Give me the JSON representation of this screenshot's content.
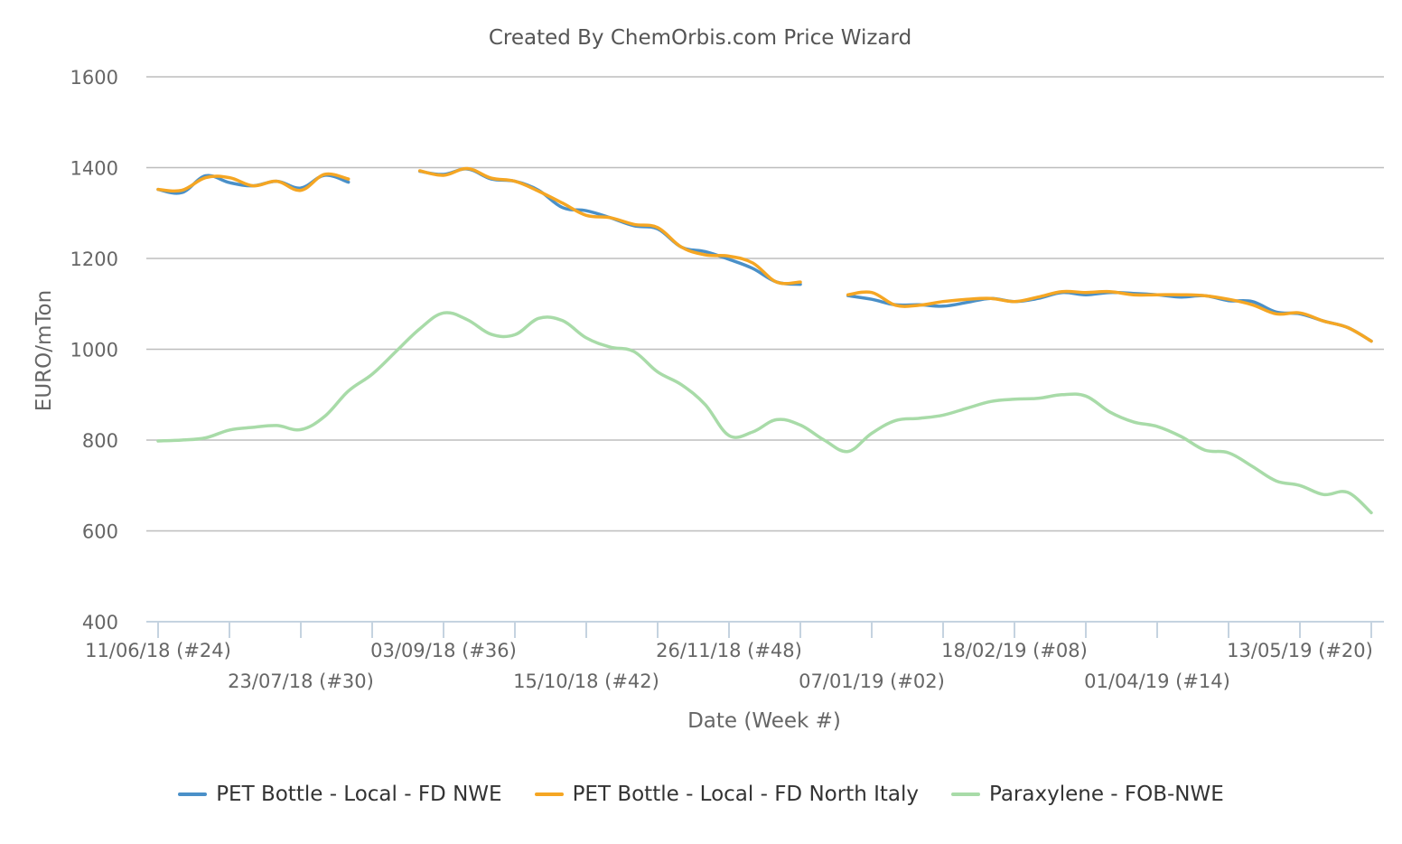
{
  "chart_data": {
    "type": "line",
    "title": "Created By ChemOrbis.com Price Wizard",
    "xlabel": "Date (Week #)",
    "ylabel": "EURO/mTon",
    "ylim": [
      400,
      1600
    ],
    "yticks": [
      400,
      600,
      800,
      1000,
      1200,
      1400,
      1600
    ],
    "grid": true,
    "legend_position": "bottom",
    "x_tick_labels": [
      {
        "label": "11/06/18 (#24)",
        "week": 0,
        "row": 0
      },
      {
        "label": "23/07/18 (#30)",
        "week": 6,
        "row": 1
      },
      {
        "label": "03/09/18 (#36)",
        "week": 12,
        "row": 0
      },
      {
        "label": "15/10/18 (#42)",
        "week": 18,
        "row": 1
      },
      {
        "label": "26/11/18 (#48)",
        "week": 24,
        "row": 0
      },
      {
        "label": "07/01/19 (#02)",
        "week": 30,
        "row": 1
      },
      {
        "label": "18/02/19 (#08)",
        "week": 36,
        "row": 0
      },
      {
        "label": "01/04/19 (#14)",
        "week": 42,
        "row": 1
      },
      {
        "label": "13/05/19 (#20)",
        "week": 48,
        "row": 0
      }
    ],
    "x_range": [
      0,
      51
    ],
    "series": [
      {
        "name": "PET Bottle - Local - FD NWE",
        "color": "#4a90c8",
        "points": [
          [
            0,
            1352
          ],
          [
            1,
            1345
          ],
          [
            2,
            1382
          ],
          [
            3,
            1367
          ],
          [
            4,
            1360
          ],
          [
            5,
            1370
          ],
          [
            6,
            1355
          ],
          [
            7,
            1383
          ],
          [
            8,
            1368
          ],
          null,
          [
            11,
            1392
          ],
          [
            12,
            1385
          ],
          [
            13,
            1397
          ],
          [
            14,
            1375
          ],
          [
            15,
            1370
          ],
          [
            16,
            1350
          ],
          [
            17,
            1312
          ],
          [
            18,
            1305
          ],
          [
            19,
            1290
          ],
          [
            20,
            1272
          ],
          [
            21,
            1265
          ],
          [
            22,
            1225
          ],
          [
            23,
            1215
          ],
          [
            24,
            1198
          ],
          [
            25,
            1178
          ],
          [
            26,
            1148
          ],
          [
            27,
            1143
          ],
          null,
          [
            29,
            1118
          ],
          [
            30,
            1110
          ],
          [
            31,
            1098
          ],
          [
            32,
            1098
          ],
          [
            33,
            1095
          ],
          [
            34,
            1103
          ],
          [
            35,
            1112
          ],
          [
            36,
            1105
          ],
          [
            37,
            1112
          ],
          [
            38,
            1125
          ],
          [
            39,
            1120
          ],
          [
            40,
            1125
          ],
          [
            41,
            1123
          ],
          [
            42,
            1120
          ],
          [
            43,
            1115
          ],
          [
            44,
            1118
          ],
          [
            45,
            1107
          ],
          [
            46,
            1105
          ],
          [
            47,
            1082
          ],
          [
            48,
            1078
          ],
          [
            49,
            1062
          ],
          [
            50,
            1048
          ],
          [
            51,
            1018
          ]
        ]
      },
      {
        "name": "PET Bottle - Local - FD North Italy",
        "color": "#f5a623",
        "points": [
          [
            0,
            1352
          ],
          [
            1,
            1350
          ],
          [
            2,
            1378
          ],
          [
            3,
            1378
          ],
          [
            4,
            1360
          ],
          [
            5,
            1370
          ],
          [
            6,
            1350
          ],
          [
            7,
            1385
          ],
          [
            8,
            1375
          ],
          null,
          [
            11,
            1393
          ],
          [
            12,
            1383
          ],
          [
            13,
            1398
          ],
          [
            14,
            1377
          ],
          [
            15,
            1370
          ],
          [
            16,
            1348
          ],
          [
            17,
            1322
          ],
          [
            18,
            1295
          ],
          [
            19,
            1290
          ],
          [
            20,
            1275
          ],
          [
            21,
            1268
          ],
          [
            22,
            1225
          ],
          [
            23,
            1208
          ],
          [
            24,
            1205
          ],
          [
            25,
            1190
          ],
          [
            26,
            1148
          ],
          [
            27,
            1148
          ],
          null,
          [
            29,
            1120
          ],
          [
            30,
            1125
          ],
          [
            31,
            1097
          ],
          [
            32,
            1097
          ],
          [
            33,
            1105
          ],
          [
            34,
            1110
          ],
          [
            35,
            1112
          ],
          [
            36,
            1105
          ],
          [
            37,
            1115
          ],
          [
            38,
            1127
          ],
          [
            39,
            1125
          ],
          [
            40,
            1127
          ],
          [
            41,
            1120
          ],
          [
            42,
            1120
          ],
          [
            43,
            1120
          ],
          [
            44,
            1118
          ],
          [
            45,
            1110
          ],
          [
            46,
            1098
          ],
          [
            47,
            1078
          ],
          [
            48,
            1080
          ],
          [
            49,
            1062
          ],
          [
            50,
            1048
          ],
          [
            51,
            1018
          ]
        ]
      },
      {
        "name": "Paraxylene - FOB-NWE",
        "color": "#a8dba8",
        "points": [
          [
            0,
            798
          ],
          [
            1,
            800
          ],
          [
            2,
            805
          ],
          [
            3,
            822
          ],
          [
            4,
            828
          ],
          [
            5,
            832
          ],
          [
            6,
            823
          ],
          [
            7,
            852
          ],
          [
            8,
            908
          ],
          [
            9,
            945
          ],
          [
            10,
            995
          ],
          [
            11,
            1045
          ],
          [
            12,
            1080
          ],
          [
            13,
            1065
          ],
          [
            14,
            1033
          ],
          [
            15,
            1032
          ],
          [
            16,
            1068
          ],
          [
            17,
            1063
          ],
          [
            18,
            1025
          ],
          [
            19,
            1005
          ],
          [
            20,
            995
          ],
          [
            21,
            950
          ],
          [
            22,
            922
          ],
          [
            23,
            878
          ],
          [
            24,
            810
          ],
          [
            25,
            818
          ],
          [
            26,
            845
          ],
          [
            27,
            833
          ],
          [
            28,
            800
          ],
          [
            29,
            775
          ],
          [
            30,
            815
          ],
          [
            31,
            843
          ],
          [
            32,
            848
          ],
          [
            33,
            855
          ],
          [
            34,
            870
          ],
          [
            35,
            885
          ],
          [
            36,
            890
          ],
          [
            37,
            892
          ],
          [
            38,
            900
          ],
          [
            39,
            897
          ],
          [
            40,
            862
          ],
          [
            41,
            840
          ],
          [
            42,
            830
          ],
          [
            43,
            808
          ],
          [
            44,
            778
          ],
          [
            45,
            772
          ],
          [
            46,
            742
          ],
          [
            47,
            710
          ],
          [
            48,
            700
          ],
          [
            49,
            680
          ],
          [
            50,
            685
          ],
          [
            51,
            640
          ]
        ]
      }
    ]
  }
}
